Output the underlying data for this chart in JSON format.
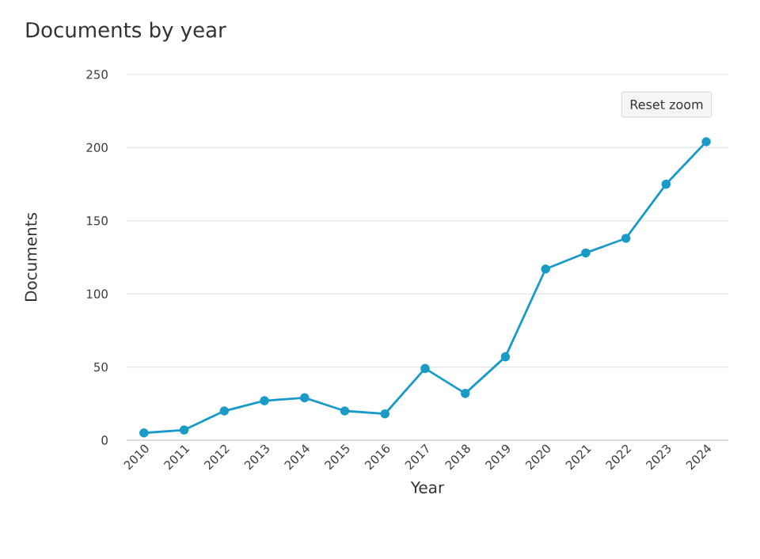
{
  "chart_data": {
    "type": "line",
    "title": "Documents by year",
    "xlabel": "Year",
    "ylabel": "Documents",
    "categories": [
      "2010",
      "2011",
      "2012",
      "2013",
      "2014",
      "2015",
      "2016",
      "2017",
      "2018",
      "2019",
      "2020",
      "2021",
      "2022",
      "2023",
      "2024"
    ],
    "series": [
      {
        "color": "#1a9bc7",
        "values": [
          5,
          7,
          20,
          27,
          29,
          20,
          18,
          49,
          32,
          57,
          117,
          128,
          138,
          175,
          204
        ]
      }
    ],
    "ylim": [
      0,
      250
    ],
    "yticks": [
      0,
      50,
      100,
      150,
      200,
      250
    ],
    "grid": "y",
    "marker": "circle",
    "line_style": "solid",
    "annotations": [
      "Reset zoom"
    ]
  }
}
